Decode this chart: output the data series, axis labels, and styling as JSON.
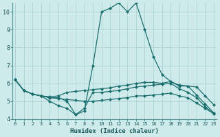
{
  "xlabel": "Humidex (Indice chaleur)",
  "bg_color": "#ceeaea",
  "grid_color": "#aad4d4",
  "line_color": "#1a6e6e",
  "x_values": [
    0,
    1,
    2,
    3,
    4,
    5,
    6,
    7,
    8,
    9,
    10,
    11,
    12,
    13,
    14,
    15,
    16,
    17,
    18,
    19,
    20,
    21,
    22,
    23
  ],
  "line1": [
    6.2,
    5.6,
    5.4,
    5.3,
    5.2,
    5.2,
    5.0,
    4.25,
    4.45,
    7.0,
    10.0,
    10.2,
    10.5,
    10.0,
    10.5,
    9.0,
    7.5,
    6.5,
    6.1,
    5.9,
    5.85,
    5.8,
    5.3,
    4.8
  ],
  "line2": [
    6.2,
    5.6,
    5.4,
    5.3,
    5.25,
    5.3,
    5.5,
    5.55,
    5.6,
    5.65,
    5.7,
    5.75,
    5.85,
    5.9,
    6.0,
    6.05,
    6.05,
    6.0,
    6.1,
    5.85,
    5.85,
    5.35,
    4.85,
    4.35
  ],
  "line3": [
    6.2,
    5.6,
    5.4,
    5.3,
    5.2,
    5.15,
    5.1,
    5.05,
    5.0,
    5.0,
    5.05,
    5.1,
    5.15,
    5.2,
    5.3,
    5.3,
    5.35,
    5.4,
    5.45,
    5.3,
    5.2,
    4.9,
    4.6,
    4.3
  ],
  "line4": [
    6.2,
    5.6,
    5.4,
    5.3,
    5.0,
    4.75,
    4.6,
    4.25,
    4.6,
    5.5,
    5.5,
    5.55,
    5.6,
    5.7,
    5.8,
    5.85,
    5.9,
    5.95,
    6.0,
    5.7,
    5.5,
    5.2,
    4.7,
    4.3
  ],
  "ylim": [
    4.0,
    10.5
  ],
  "xlim": [
    -0.3,
    23.3
  ],
  "yticks": [
    4,
    5,
    6,
    7,
    8,
    9,
    10
  ],
  "xticks": [
    0,
    1,
    2,
    3,
    4,
    5,
    6,
    7,
    8,
    9,
    10,
    11,
    12,
    13,
    14,
    15,
    16,
    17,
    18,
    19,
    20,
    21,
    22,
    23
  ],
  "figsize": [
    3.2,
    2.0
  ],
  "dpi": 100
}
